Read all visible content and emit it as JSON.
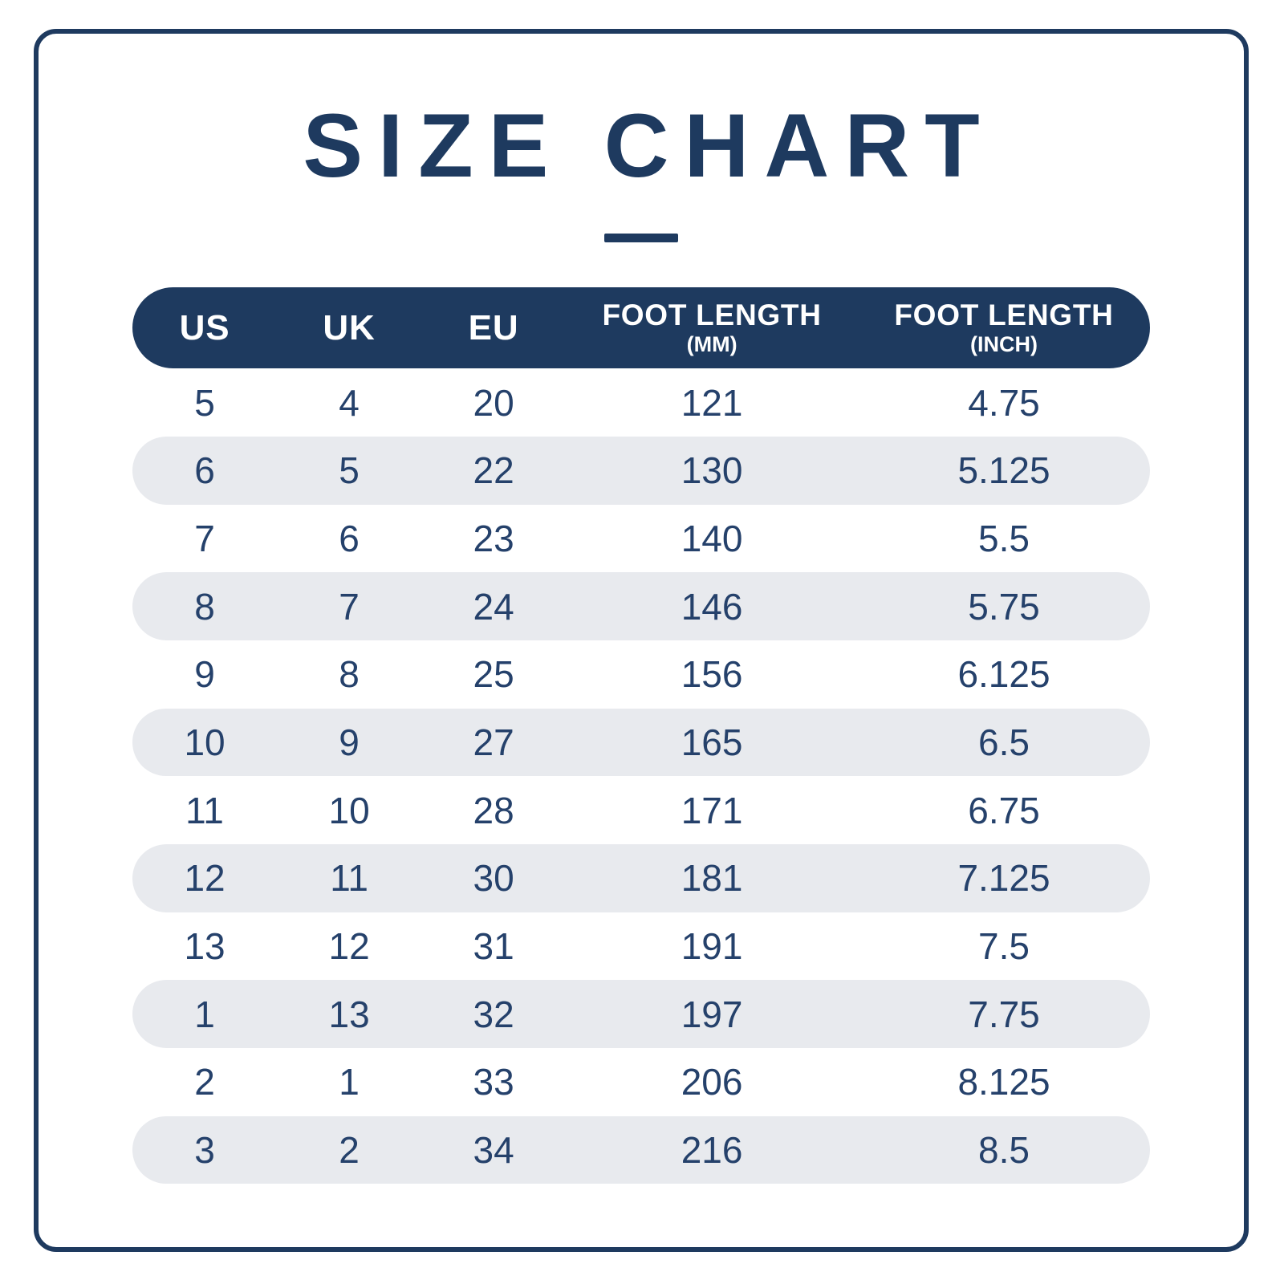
{
  "title": "SIZE CHART",
  "colors": {
    "navy": "#1e3a5f",
    "row_alt_gray": "#e8eaee",
    "header_text": "#ffffff",
    "body_text": "#25416b",
    "background": "#ffffff"
  },
  "chart_data": {
    "type": "table",
    "title": "SIZE CHART",
    "columns": [
      {
        "label": "US",
        "sub": ""
      },
      {
        "label": "UK",
        "sub": ""
      },
      {
        "label": "EU",
        "sub": ""
      },
      {
        "label": "FOOT LENGTH",
        "sub": "(MM)"
      },
      {
        "label": "FOOT LENGTH",
        "sub": "(INCH)"
      }
    ],
    "rows": [
      [
        "5",
        "4",
        "20",
        "121",
        "4.75"
      ],
      [
        "6",
        "5",
        "22",
        "130",
        "5.125"
      ],
      [
        "7",
        "6",
        "23",
        "140",
        "5.5"
      ],
      [
        "8",
        "7",
        "24",
        "146",
        "5.75"
      ],
      [
        "9",
        "8",
        "25",
        "156",
        "6.125"
      ],
      [
        "10",
        "9",
        "27",
        "165",
        "6.5"
      ],
      [
        "11",
        "10",
        "28",
        "171",
        "6.75"
      ],
      [
        "12",
        "11",
        "30",
        "181",
        "7.125"
      ],
      [
        "13",
        "12",
        "31",
        "191",
        "7.5"
      ],
      [
        "1",
        "13",
        "32",
        "197",
        "7.75"
      ],
      [
        "2",
        "1",
        "33",
        "206",
        "8.125"
      ],
      [
        "3",
        "2",
        "34",
        "216",
        "8.5"
      ]
    ],
    "layout": {
      "row_striping": "alternate starting white, even rows gray pills",
      "header_style": "navy pill with white bold text",
      "grid": false
    }
  }
}
